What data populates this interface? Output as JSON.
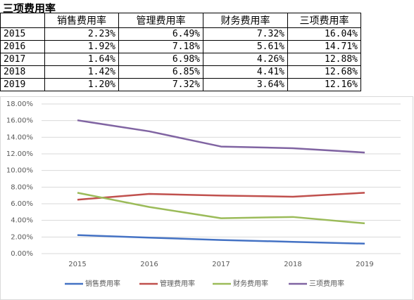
{
  "title": "三项费用率",
  "table": {
    "header": [
      "销售费用率",
      "管理费用率",
      "财务费用率",
      "三项费用率"
    ],
    "rows": [
      [
        "2015",
        "2.23%",
        "6.49%",
        "7.32%",
        "16.04%"
      ],
      [
        "2016",
        "1.92%",
        "7.18%",
        "5.61%",
        "14.71%"
      ],
      [
        "2017",
        "1.64%",
        "6.98%",
        "4.26%",
        "12.88%"
      ],
      [
        "2018",
        "1.42%",
        "6.85%",
        "4.41%",
        "12.68%"
      ],
      [
        "2019",
        "1.20%",
        "7.32%",
        "3.64%",
        "12.16%"
      ]
    ]
  },
  "chart_data": {
    "type": "line",
    "categories": [
      "2015",
      "2016",
      "2017",
      "2018",
      "2019"
    ],
    "series": [
      {
        "name": "销售费用率",
        "color": "#4472c4",
        "values": [
          2.23,
          1.92,
          1.64,
          1.42,
          1.2
        ]
      },
      {
        "name": "管理费用率",
        "color": "#c0504d",
        "values": [
          6.49,
          7.18,
          6.98,
          6.85,
          7.32
        ]
      },
      {
        "name": "财务费用率",
        "color": "#9bbb59",
        "values": [
          7.32,
          5.61,
          4.26,
          4.41,
          3.64
        ]
      },
      {
        "name": "三项费用率",
        "color": "#8064a2",
        "values": [
          16.04,
          14.71,
          12.88,
          12.68,
          12.16
        ]
      }
    ],
    "ylim": [
      0,
      18
    ],
    "yticks": [
      {
        "value": 0,
        "label": "0.00%"
      },
      {
        "value": 2,
        "label": "2.00%"
      },
      {
        "value": 4,
        "label": "4.00%"
      },
      {
        "value": 6,
        "label": "6.00%"
      },
      {
        "value": 8,
        "label": "8.00%"
      },
      {
        "value": 10,
        "label": "10.00%"
      },
      {
        "value": 12,
        "label": "12.00%"
      },
      {
        "value": 14,
        "label": "14.00%"
      },
      {
        "value": 16,
        "label": "16.00%"
      },
      {
        "value": 18,
        "label": "18.00%"
      }
    ],
    "grid": true,
    "legend": "bottom"
  }
}
